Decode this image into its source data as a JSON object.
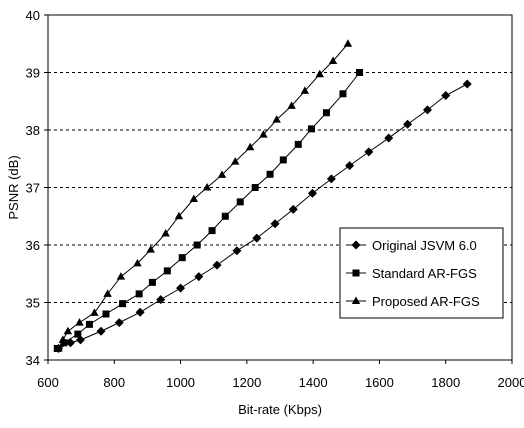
{
  "chart_data": {
    "type": "line",
    "xlabel": "Bit-rate (Kbps)",
    "ylabel": "PSNR (dB)",
    "xlim": [
      600,
      2000
    ],
    "ylim": [
      34,
      40
    ],
    "x_ticks": [
      "600",
      "800",
      "1000",
      "1200",
      "1400",
      "1600",
      "1800",
      "2000"
    ],
    "y_ticks": [
      "34",
      "35",
      "36",
      "37",
      "38",
      "39",
      "40"
    ],
    "grid": "horizontal dashed",
    "legend_position": "lower-right",
    "series": [
      {
        "name": "Original JSVM 6.0",
        "marker": "diamond",
        "points": [
          [
            632,
            34.2
          ],
          [
            668,
            34.3
          ],
          [
            698,
            34.35
          ],
          [
            760,
            34.5
          ],
          [
            815,
            34.65
          ],
          [
            878,
            34.83
          ],
          [
            940,
            35.05
          ],
          [
            1000,
            35.25
          ],
          [
            1055,
            35.45
          ],
          [
            1110,
            35.65
          ],
          [
            1170,
            35.9
          ],
          [
            1230,
            36.12
          ],
          [
            1285,
            36.37
          ],
          [
            1340,
            36.62
          ],
          [
            1398,
            36.9
          ],
          [
            1455,
            37.15
          ],
          [
            1510,
            37.38
          ],
          [
            1568,
            37.62
          ],
          [
            1628,
            37.86
          ],
          [
            1685,
            38.1
          ],
          [
            1745,
            38.35
          ],
          [
            1800,
            38.6
          ],
          [
            1865,
            38.8
          ]
        ]
      },
      {
        "name": "Standard AR-FGS",
        "marker": "square",
        "points": [
          [
            628,
            34.2
          ],
          [
            648,
            34.3
          ],
          [
            690,
            34.45
          ],
          [
            725,
            34.62
          ],
          [
            775,
            34.8
          ],
          [
            825,
            34.98
          ],
          [
            875,
            35.15
          ],
          [
            915,
            35.35
          ],
          [
            960,
            35.55
          ],
          [
            1005,
            35.78
          ],
          [
            1050,
            36.0
          ],
          [
            1095,
            36.25
          ],
          [
            1135,
            36.5
          ],
          [
            1180,
            36.75
          ],
          [
            1225,
            37.0
          ],
          [
            1270,
            37.23
          ],
          [
            1310,
            37.48
          ],
          [
            1355,
            37.75
          ],
          [
            1395,
            38.02
          ],
          [
            1440,
            38.3
          ],
          [
            1490,
            38.63
          ],
          [
            1540,
            39.0
          ]
        ]
      },
      {
        "name": "Proposed AR-FGS",
        "marker": "triangle",
        "points": [
          [
            632,
            34.2
          ],
          [
            645,
            34.35
          ],
          [
            660,
            34.5
          ],
          [
            695,
            34.65
          ],
          [
            740,
            34.82
          ],
          [
            780,
            35.15
          ],
          [
            820,
            35.45
          ],
          [
            870,
            35.68
          ],
          [
            910,
            35.92
          ],
          [
            955,
            36.2
          ],
          [
            995,
            36.5
          ],
          [
            1040,
            36.8
          ],
          [
            1080,
            37.0
          ],
          [
            1125,
            37.22
          ],
          [
            1165,
            37.45
          ],
          [
            1210,
            37.7
          ],
          [
            1250,
            37.92
          ],
          [
            1290,
            38.18
          ],
          [
            1335,
            38.42
          ],
          [
            1375,
            38.68
          ],
          [
            1420,
            38.97
          ],
          [
            1460,
            39.2
          ],
          [
            1505,
            39.5
          ]
        ]
      }
    ]
  }
}
